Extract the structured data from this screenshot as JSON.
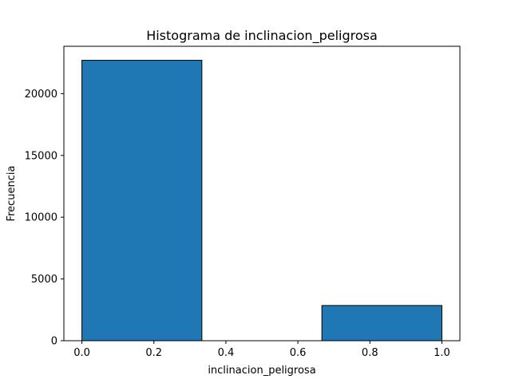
{
  "chart_data": {
    "type": "bar",
    "title": "Histograma de inclinacion_peligrosa",
    "xlabel": "inclinacion_peligrosa",
    "ylabel": "Frecuencia",
    "bins": [
      {
        "x_start": 0.0,
        "x_end": 0.3333,
        "value": 22700
      },
      {
        "x_start": 0.3333,
        "x_end": 0.6667,
        "value": 0
      },
      {
        "x_start": 0.6667,
        "x_end": 1.0,
        "value": 2850
      }
    ],
    "xlim": [
      -0.05,
      1.05
    ],
    "ylim": [
      0,
      23835
    ],
    "x_ticks": [
      {
        "value": 0.0,
        "label": "0.0"
      },
      {
        "value": 0.2,
        "label": "0.2"
      },
      {
        "value": 0.4,
        "label": "0.4"
      },
      {
        "value": 0.6,
        "label": "0.6"
      },
      {
        "value": 0.8,
        "label": "0.8"
      },
      {
        "value": 1.0,
        "label": "1.0"
      }
    ],
    "y_ticks": [
      {
        "value": 0,
        "label": "0"
      },
      {
        "value": 5000,
        "label": "5000"
      },
      {
        "value": 10000,
        "label": "10000"
      },
      {
        "value": 15000,
        "label": "15000"
      },
      {
        "value": 20000,
        "label": "20000"
      }
    ],
    "bar_color": "#1f77b4",
    "edge_color": "#000000",
    "grid": false,
    "legend": "none"
  }
}
